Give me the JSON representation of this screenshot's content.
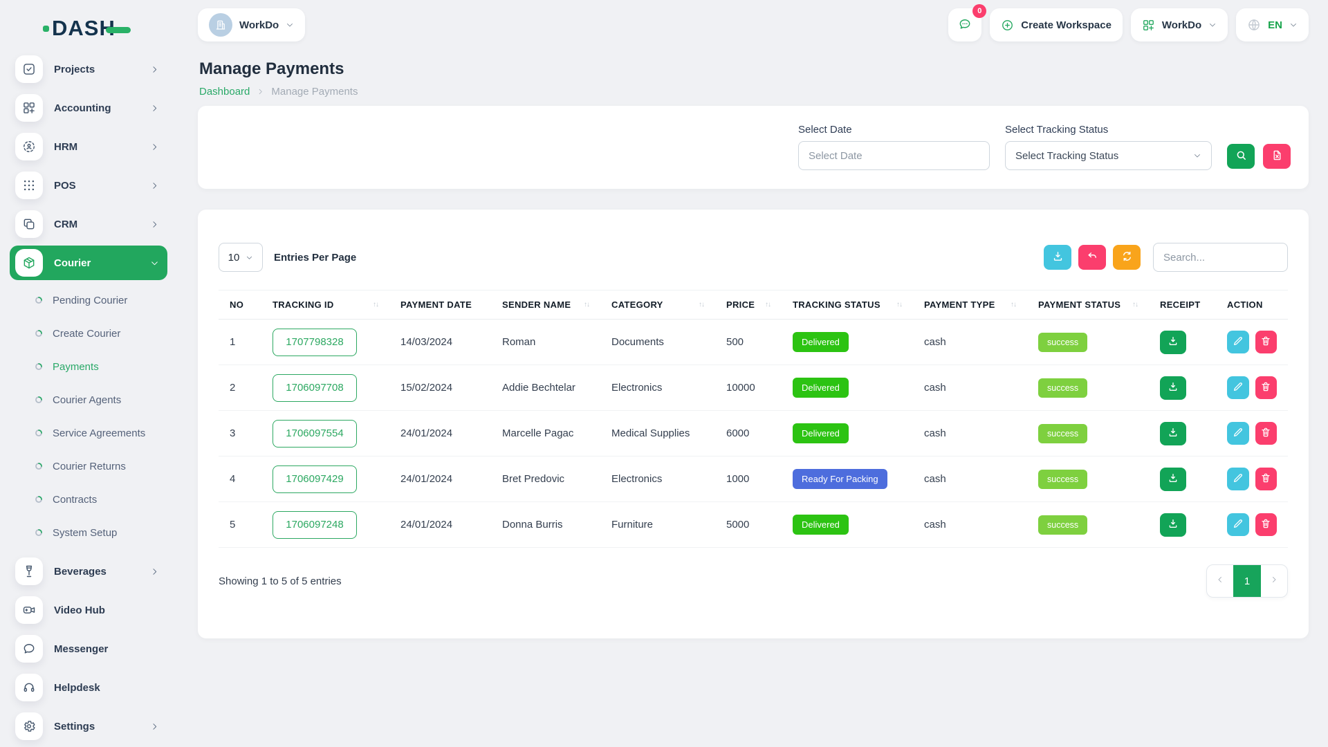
{
  "colors": {
    "primary_green": "#22a75e",
    "emerald": "#12a457",
    "delivered_badge": "#2cc312",
    "ready_badge": "#4d6ddd",
    "success_badge": "#7ed03f",
    "cyan": "#43c5df",
    "pink": "#fb3e6d",
    "orange": "#f9a41b",
    "page_background": "#f0f1f4"
  },
  "brand": {
    "logo_text": "DASH"
  },
  "topbar": {
    "workspace_label": "WorkDo",
    "chat_badge": "0",
    "create_workspace_label": "Create Workspace",
    "user_menu_label": "WorkDo",
    "language_code": "EN"
  },
  "sidebar": {
    "items": [
      {
        "label": "Projects",
        "icon": "check-square",
        "chevron": "right"
      },
      {
        "label": "Accounting",
        "icon": "grid-plus",
        "chevron": "right"
      },
      {
        "label": "HRM",
        "icon": "user-scan",
        "chevron": "right"
      },
      {
        "label": "POS",
        "icon": "dots-grid",
        "chevron": "right"
      },
      {
        "label": "CRM",
        "icon": "copy",
        "chevron": "right"
      },
      {
        "label": "Courier",
        "icon": "package",
        "chevron": "down",
        "active": true,
        "children": [
          {
            "label": "Pending Courier"
          },
          {
            "label": "Create Courier"
          },
          {
            "label": "Payments",
            "active": true
          },
          {
            "label": "Courier Agents"
          },
          {
            "label": "Service Agreements"
          },
          {
            "label": "Courier Returns"
          },
          {
            "label": "Contracts"
          },
          {
            "label": "System Setup"
          }
        ]
      },
      {
        "label": "Beverages",
        "icon": "wine",
        "chevron": "right"
      },
      {
        "label": "Video Hub",
        "icon": "video"
      },
      {
        "label": "Messenger",
        "icon": "chat"
      },
      {
        "label": "Helpdesk",
        "icon": "headset"
      },
      {
        "label": "Settings",
        "icon": "gear",
        "chevron": "right"
      }
    ]
  },
  "page": {
    "title": "Manage Payments",
    "breadcrumb_home": "Dashboard",
    "breadcrumb_current": "Manage Payments"
  },
  "filters": {
    "date_label": "Select Date",
    "date_placeholder": "Select Date",
    "status_label": "Select Tracking Status",
    "status_value": "Select Tracking Status"
  },
  "table": {
    "entries_per_page": "10",
    "entries_label": "Entries Per Page",
    "search_placeholder": "Search...",
    "columns": [
      {
        "label": "NO",
        "sortable": false
      },
      {
        "label": "TRACKING ID",
        "sortable": true
      },
      {
        "label": "PAYMENT DATE",
        "sortable": false
      },
      {
        "label": "SENDER NAME",
        "sortable": true
      },
      {
        "label": "CATEGORY",
        "sortable": true
      },
      {
        "label": "PRICE",
        "sortable": true
      },
      {
        "label": "TRACKING STATUS",
        "sortable": true
      },
      {
        "label": "PAYMENT TYPE",
        "sortable": true
      },
      {
        "label": "PAYMENT STATUS",
        "sortable": true
      },
      {
        "label": "RECEIPT",
        "sortable": false
      },
      {
        "label": "ACTION",
        "sortable": false
      }
    ],
    "rows": [
      {
        "no": "1",
        "tracking_id": "1707798328",
        "payment_date": "14/03/2024",
        "sender_name": "Roman",
        "category": "Documents",
        "price": "500",
        "tracking_status": "Delivered",
        "tracking_status_style": "delivered",
        "payment_type": "cash",
        "payment_status": "success"
      },
      {
        "no": "2",
        "tracking_id": "1706097708",
        "payment_date": "15/02/2024",
        "sender_name": "Addie Bechtelar",
        "category": "Electronics",
        "price": "10000",
        "tracking_status": "Delivered",
        "tracking_status_style": "delivered",
        "payment_type": "cash",
        "payment_status": "success"
      },
      {
        "no": "3",
        "tracking_id": "1706097554",
        "payment_date": "24/01/2024",
        "sender_name": "Marcelle Pagac",
        "category": "Medical Supplies",
        "price": "6000",
        "tracking_status": "Delivered",
        "tracking_status_style": "delivered",
        "payment_type": "cash",
        "payment_status": "success"
      },
      {
        "no": "4",
        "tracking_id": "1706097429",
        "payment_date": "24/01/2024",
        "sender_name": "Bret Predovic",
        "category": "Electronics",
        "price": "1000",
        "tracking_status": "Ready For Packing",
        "tracking_status_style": "ready",
        "payment_type": "cash",
        "payment_status": "success"
      },
      {
        "no": "5",
        "tracking_id": "1706097248",
        "payment_date": "24/01/2024",
        "sender_name": "Donna Burris",
        "category": "Furniture",
        "price": "5000",
        "tracking_status": "Delivered",
        "tracking_status_style": "delivered",
        "payment_type": "cash",
        "payment_status": "success"
      }
    ],
    "footer": {
      "showing_text": "Showing 1 to 5 of 5 entries",
      "current_page": "1"
    }
  }
}
